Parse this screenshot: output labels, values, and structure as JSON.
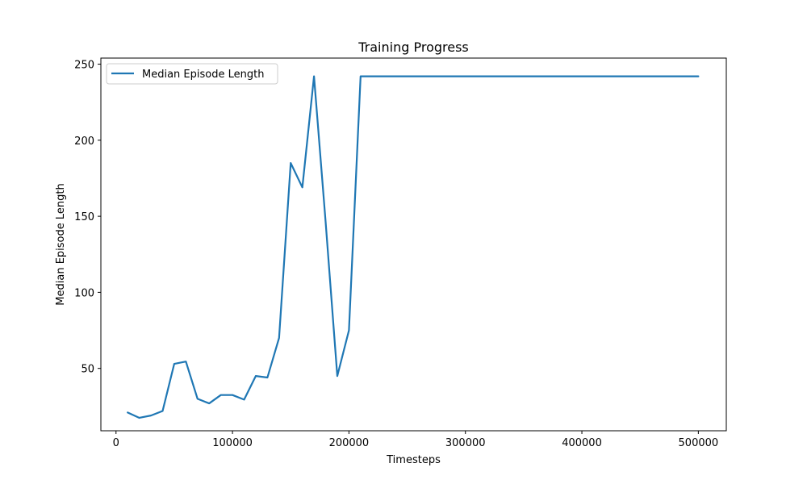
{
  "chart_data": {
    "type": "line",
    "title": "Training Progress",
    "xlabel": "Timesteps",
    "ylabel": "Median Episode Length",
    "xlim": [
      -13000,
      524000
    ],
    "ylim": [
      9,
      254
    ],
    "xticks": [
      0,
      100000,
      200000,
      300000,
      400000,
      500000
    ],
    "yticks": [
      50,
      100,
      150,
      200,
      250
    ],
    "grid": false,
    "legend_position": "top-left",
    "series": [
      {
        "name": "Median Episode Length",
        "color": "#1f77b4",
        "x": [
          10000,
          20000,
          30000,
          40000,
          50000,
          60000,
          70000,
          80000,
          90000,
          100000,
          110000,
          120000,
          130000,
          140000,
          150000,
          160000,
          170000,
          180000,
          190000,
          200000,
          210000,
          220000,
          230000,
          240000,
          250000,
          260000,
          270000,
          280000,
          290000,
          300000,
          310000,
          320000,
          330000,
          340000,
          350000,
          360000,
          370000,
          380000,
          390000,
          400000,
          410000,
          420000,
          430000,
          440000,
          450000,
          460000,
          470000,
          480000,
          490000,
          500000
        ],
        "y": [
          21,
          17.5,
          19,
          22,
          53,
          54.5,
          30,
          27,
          32.5,
          32.5,
          29.5,
          45,
          44,
          70,
          185,
          169,
          242,
          146,
          45,
          75,
          242,
          242,
          242,
          242,
          242,
          242,
          242,
          242,
          242,
          242,
          242,
          242,
          242,
          242,
          242,
          242,
          242,
          242,
          242,
          242,
          242,
          242,
          242,
          242,
          242,
          242,
          242,
          242,
          242,
          242
        ]
      }
    ]
  }
}
